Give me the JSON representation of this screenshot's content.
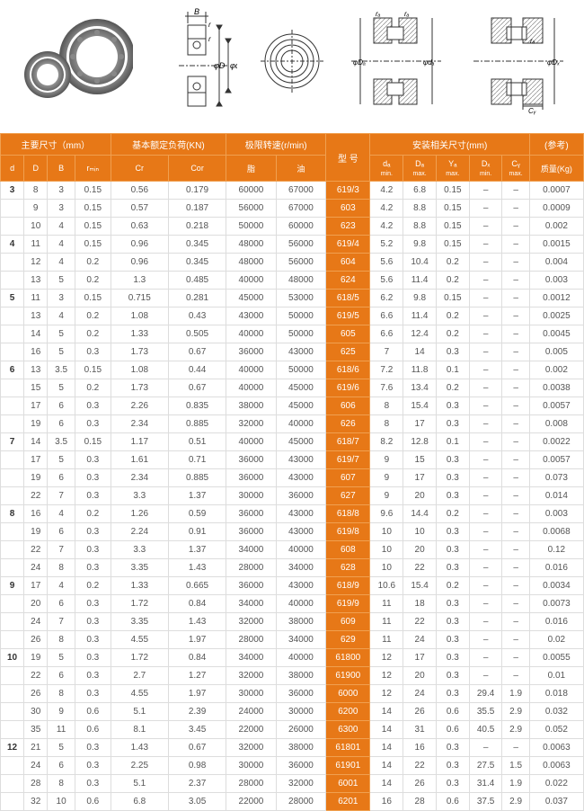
{
  "headers": {
    "group1": "主要尺寸（mm）",
    "group2": "基本额定负荷(KN)",
    "group3": "极限转速(r/min)",
    "group4": "型 号",
    "group5": "安装相关尺寸(mm)",
    "group6": "(参考)",
    "d": "d",
    "D": "D",
    "B": "B",
    "rmin": "rₘᵢₙ",
    "Cr": "Cr",
    "Cor": "Cor",
    "grease": "脂",
    "oil": "油",
    "da": "dₐ",
    "da_sub": "min.",
    "Da": "Dₐ",
    "Da_sub": "max.",
    "Ya": "Yₐ",
    "Ya_sub": "max.",
    "Dx": "Dₓ",
    "Dx_sub": "min.",
    "Cy": "Cᵧ",
    "Cy_sub": "max.",
    "mass": "质量(Kg)"
  },
  "rows": [
    {
      "d": "3",
      "D": "8",
      "B": "3",
      "rmin": "0.15",
      "Cr": "0.56",
      "Cor": "0.179",
      "grease": "60000",
      "oil": "67000",
      "model": "619/3",
      "da": "4.2",
      "Da": "6.8",
      "Ya": "0.15",
      "Dx": "–",
      "Cy": "–",
      "mass": "0.0007"
    },
    {
      "d": "",
      "D": "9",
      "B": "3",
      "rmin": "0.15",
      "Cr": "0.57",
      "Cor": "0.187",
      "grease": "56000",
      "oil": "67000",
      "model": "603",
      "da": "4.2",
      "Da": "8.8",
      "Ya": "0.15",
      "Dx": "–",
      "Cy": "–",
      "mass": "0.0009"
    },
    {
      "d": "",
      "D": "10",
      "B": "4",
      "rmin": "0.15",
      "Cr": "0.63",
      "Cor": "0.218",
      "grease": "50000",
      "oil": "60000",
      "model": "623",
      "da": "4.2",
      "Da": "8.8",
      "Ya": "0.15",
      "Dx": "–",
      "Cy": "–",
      "mass": "0.002"
    },
    {
      "d": "4",
      "D": "11",
      "B": "4",
      "rmin": "0.15",
      "Cr": "0.96",
      "Cor": "0.345",
      "grease": "48000",
      "oil": "56000",
      "model": "619/4",
      "da": "5.2",
      "Da": "9.8",
      "Ya": "0.15",
      "Dx": "–",
      "Cy": "–",
      "mass": "0.0015"
    },
    {
      "d": "",
      "D": "12",
      "B": "4",
      "rmin": "0.2",
      "Cr": "0.96",
      "Cor": "0.345",
      "grease": "48000",
      "oil": "56000",
      "model": "604",
      "da": "5.6",
      "Da": "10.4",
      "Ya": "0.2",
      "Dx": "–",
      "Cy": "–",
      "mass": "0.004"
    },
    {
      "d": "",
      "D": "13",
      "B": "5",
      "rmin": "0.2",
      "Cr": "1.3",
      "Cor": "0.485",
      "grease": "40000",
      "oil": "48000",
      "model": "624",
      "da": "5.6",
      "Da": "11.4",
      "Ya": "0.2",
      "Dx": "–",
      "Cy": "–",
      "mass": "0.003"
    },
    {
      "d": "5",
      "D": "11",
      "B": "3",
      "rmin": "0.15",
      "Cr": "0.715",
      "Cor": "0.281",
      "grease": "45000",
      "oil": "53000",
      "model": "618/5",
      "da": "6.2",
      "Da": "9.8",
      "Ya": "0.15",
      "Dx": "–",
      "Cy": "–",
      "mass": "0.0012"
    },
    {
      "d": "",
      "D": "13",
      "B": "4",
      "rmin": "0.2",
      "Cr": "1.08",
      "Cor": "0.43",
      "grease": "43000",
      "oil": "50000",
      "model": "619/5",
      "da": "6.6",
      "Da": "11.4",
      "Ya": "0.2",
      "Dx": "–",
      "Cy": "–",
      "mass": "0.0025"
    },
    {
      "d": "",
      "D": "14",
      "B": "5",
      "rmin": "0.2",
      "Cr": "1.33",
      "Cor": "0.505",
      "grease": "40000",
      "oil": "50000",
      "model": "605",
      "da": "6.6",
      "Da": "12.4",
      "Ya": "0.2",
      "Dx": "–",
      "Cy": "–",
      "mass": "0.0045"
    },
    {
      "d": "",
      "D": "16",
      "B": "5",
      "rmin": "0.3",
      "Cr": "1.73",
      "Cor": "0.67",
      "grease": "36000",
      "oil": "43000",
      "model": "625",
      "da": "7",
      "Da": "14",
      "Ya": "0.3",
      "Dx": "–",
      "Cy": "–",
      "mass": "0.005"
    },
    {
      "d": "6",
      "D": "13",
      "B": "3.5",
      "rmin": "0.15",
      "Cr": "1.08",
      "Cor": "0.44",
      "grease": "40000",
      "oil": "50000",
      "model": "618/6",
      "da": "7.2",
      "Da": "11.8",
      "Ya": "0.1",
      "Dx": "–",
      "Cy": "–",
      "mass": "0.002"
    },
    {
      "d": "",
      "D": "15",
      "B": "5",
      "rmin": "0.2",
      "Cr": "1.73",
      "Cor": "0.67",
      "grease": "40000",
      "oil": "45000",
      "model": "619/6",
      "da": "7.6",
      "Da": "13.4",
      "Ya": "0.2",
      "Dx": "–",
      "Cy": "–",
      "mass": "0.0038"
    },
    {
      "d": "",
      "D": "17",
      "B": "6",
      "rmin": "0.3",
      "Cr": "2.26",
      "Cor": "0.835",
      "grease": "38000",
      "oil": "45000",
      "model": "606",
      "da": "8",
      "Da": "15.4",
      "Ya": "0.3",
      "Dx": "–",
      "Cy": "–",
      "mass": "0.0057"
    },
    {
      "d": "",
      "D": "19",
      "B": "6",
      "rmin": "0.3",
      "Cr": "2.34",
      "Cor": "0.885",
      "grease": "32000",
      "oil": "40000",
      "model": "626",
      "da": "8",
      "Da": "17",
      "Ya": "0.3",
      "Dx": "–",
      "Cy": "–",
      "mass": "0.008"
    },
    {
      "d": "7",
      "D": "14",
      "B": "3.5",
      "rmin": "0.15",
      "Cr": "1.17",
      "Cor": "0.51",
      "grease": "40000",
      "oil": "45000",
      "model": "618/7",
      "da": "8.2",
      "Da": "12.8",
      "Ya": "0.1",
      "Dx": "–",
      "Cy": "–",
      "mass": "0.0022"
    },
    {
      "d": "",
      "D": "17",
      "B": "5",
      "rmin": "0.3",
      "Cr": "1.61",
      "Cor": "0.71",
      "grease": "36000",
      "oil": "43000",
      "model": "619/7",
      "da": "9",
      "Da": "15",
      "Ya": "0.3",
      "Dx": "–",
      "Cy": "–",
      "mass": "0.0057"
    },
    {
      "d": "",
      "D": "19",
      "B": "6",
      "rmin": "0.3",
      "Cr": "2.34",
      "Cor": "0.885",
      "grease": "36000",
      "oil": "43000",
      "model": "607",
      "da": "9",
      "Da": "17",
      "Ya": "0.3",
      "Dx": "–",
      "Cy": "–",
      "mass": "0.073"
    },
    {
      "d": "",
      "D": "22",
      "B": "7",
      "rmin": "0.3",
      "Cr": "3.3",
      "Cor": "1.37",
      "grease": "30000",
      "oil": "36000",
      "model": "627",
      "da": "9",
      "Da": "20",
      "Ya": "0.3",
      "Dx": "–",
      "Cy": "–",
      "mass": "0.014"
    },
    {
      "d": "8",
      "D": "16",
      "B": "4",
      "rmin": "0.2",
      "Cr": "1.26",
      "Cor": "0.59",
      "grease": "36000",
      "oil": "43000",
      "model": "618/8",
      "da": "9.6",
      "Da": "14.4",
      "Ya": "0.2",
      "Dx": "–",
      "Cy": "–",
      "mass": "0.003"
    },
    {
      "d": "",
      "D": "19",
      "B": "6",
      "rmin": "0.3",
      "Cr": "2.24",
      "Cor": "0.91",
      "grease": "36000",
      "oil": "43000",
      "model": "619/8",
      "da": "10",
      "Da": "10",
      "Ya": "0.3",
      "Dx": "–",
      "Cy": "–",
      "mass": "0.0068"
    },
    {
      "d": "",
      "D": "22",
      "B": "7",
      "rmin": "0.3",
      "Cr": "3.3",
      "Cor": "1.37",
      "grease": "34000",
      "oil": "40000",
      "model": "608",
      "da": "10",
      "Da": "20",
      "Ya": "0.3",
      "Dx": "–",
      "Cy": "–",
      "mass": "0.12"
    },
    {
      "d": "",
      "D": "24",
      "B": "8",
      "rmin": "0.3",
      "Cr": "3.35",
      "Cor": "1.43",
      "grease": "28000",
      "oil": "34000",
      "model": "628",
      "da": "10",
      "Da": "22",
      "Ya": "0.3",
      "Dx": "–",
      "Cy": "–",
      "mass": "0.016"
    },
    {
      "d": "9",
      "D": "17",
      "B": "4",
      "rmin": "0.2",
      "Cr": "1.33",
      "Cor": "0.665",
      "grease": "36000",
      "oil": "43000",
      "model": "618/9",
      "da": "10.6",
      "Da": "15.4",
      "Ya": "0.2",
      "Dx": "–",
      "Cy": "–",
      "mass": "0.0034"
    },
    {
      "d": "",
      "D": "20",
      "B": "6",
      "rmin": "0.3",
      "Cr": "1.72",
      "Cor": "0.84",
      "grease": "34000",
      "oil": "40000",
      "model": "619/9",
      "da": "11",
      "Da": "18",
      "Ya": "0.3",
      "Dx": "–",
      "Cy": "–",
      "mass": "0.0073"
    },
    {
      "d": "",
      "D": "24",
      "B": "7",
      "rmin": "0.3",
      "Cr": "3.35",
      "Cor": "1.43",
      "grease": "32000",
      "oil": "38000",
      "model": "609",
      "da": "11",
      "Da": "22",
      "Ya": "0.3",
      "Dx": "–",
      "Cy": "–",
      "mass": "0.016"
    },
    {
      "d": "",
      "D": "26",
      "B": "8",
      "rmin": "0.3",
      "Cr": "4.55",
      "Cor": "1.97",
      "grease": "28000",
      "oil": "34000",
      "model": "629",
      "da": "11",
      "Da": "24",
      "Ya": "0.3",
      "Dx": "–",
      "Cy": "–",
      "mass": "0.02"
    },
    {
      "d": "10",
      "D": "19",
      "B": "5",
      "rmin": "0.3",
      "Cr": "1.72",
      "Cor": "0.84",
      "grease": "34000",
      "oil": "40000",
      "model": "61800",
      "da": "12",
      "Da": "17",
      "Ya": "0.3",
      "Dx": "–",
      "Cy": "–",
      "mass": "0.0055"
    },
    {
      "d": "",
      "D": "22",
      "B": "6",
      "rmin": "0.3",
      "Cr": "2.7",
      "Cor": "1.27",
      "grease": "32000",
      "oil": "38000",
      "model": "61900",
      "da": "12",
      "Da": "20",
      "Ya": "0.3",
      "Dx": "–",
      "Cy": "–",
      "mass": "0.01"
    },
    {
      "d": "",
      "D": "26",
      "B": "8",
      "rmin": "0.3",
      "Cr": "4.55",
      "Cor": "1.97",
      "grease": "30000",
      "oil": "36000",
      "model": "6000",
      "da": "12",
      "Da": "24",
      "Ya": "0.3",
      "Dx": "29.4",
      "Cy": "1.9",
      "mass": "0.018"
    },
    {
      "d": "",
      "D": "30",
      "B": "9",
      "rmin": "0.6",
      "Cr": "5.1",
      "Cor": "2.39",
      "grease": "24000",
      "oil": "30000",
      "model": "6200",
      "da": "14",
      "Da": "26",
      "Ya": "0.6",
      "Dx": "35.5",
      "Cy": "2.9",
      "mass": "0.032"
    },
    {
      "d": "",
      "D": "35",
      "B": "11",
      "rmin": "0.6",
      "Cr": "8.1",
      "Cor": "3.45",
      "grease": "22000",
      "oil": "26000",
      "model": "6300",
      "da": "14",
      "Da": "31",
      "Ya": "0.6",
      "Dx": "40.5",
      "Cy": "2.9",
      "mass": "0.052"
    },
    {
      "d": "12",
      "D": "21",
      "B": "5",
      "rmin": "0.3",
      "Cr": "1.43",
      "Cor": "0.67",
      "grease": "32000",
      "oil": "38000",
      "model": "61801",
      "da": "14",
      "Da": "16",
      "Ya": "0.3",
      "Dx": "–",
      "Cy": "–",
      "mass": "0.0063"
    },
    {
      "d": "",
      "D": "24",
      "B": "6",
      "rmin": "0.3",
      "Cr": "2.25",
      "Cor": "0.98",
      "grease": "30000",
      "oil": "36000",
      "model": "61901",
      "da": "14",
      "Da": "22",
      "Ya": "0.3",
      "Dx": "27.5",
      "Cy": "1.5",
      "mass": "0.0063"
    },
    {
      "d": "",
      "D": "28",
      "B": "8",
      "rmin": "0.3",
      "Cr": "5.1",
      "Cor": "2.37",
      "grease": "28000",
      "oil": "32000",
      "model": "6001",
      "da": "14",
      "Da": "26",
      "Ya": "0.3",
      "Dx": "31.4",
      "Cy": "1.9",
      "mass": "0.022"
    },
    {
      "d": "",
      "D": "32",
      "B": "10",
      "rmin": "0.6",
      "Cr": "6.8",
      "Cor": "3.05",
      "grease": "22000",
      "oil": "28000",
      "model": "6201",
      "da": "16",
      "Da": "28",
      "Ya": "0.6",
      "Dx": "37.5",
      "Cy": "2.9",
      "mass": "0.037"
    }
  ]
}
